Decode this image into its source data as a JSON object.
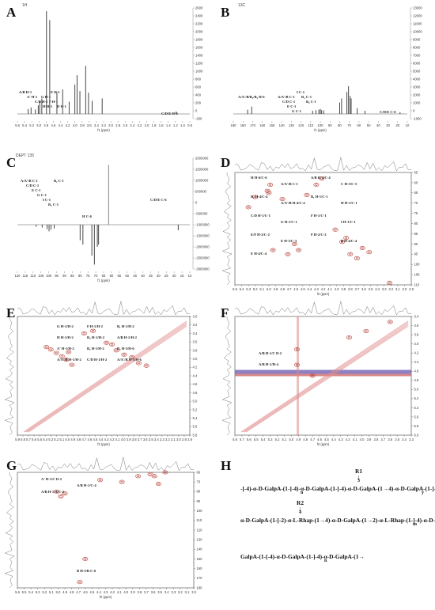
{
  "panels": {
    "A": {
      "letter": "A",
      "tag": "1H",
      "xlabel": "f1 (ppm)",
      "ticks": [
        "5.6",
        "5.4",
        "5.2",
        "5.0",
        "4.8",
        "4.6",
        "4.4",
        "4.2",
        "4.0",
        "3.8",
        "3.6",
        "3.4",
        "3.2",
        "3.0",
        "2.8",
        "2.6",
        "2.4",
        "2.2",
        "2.0",
        "1.8",
        "1.6",
        "1.4",
        "1.2",
        "1.0",
        "0.8"
      ],
      "yticks": [
        "2600",
        "2400",
        "2200",
        "2000",
        "1800",
        "1600",
        "1400",
        "1200",
        "1000",
        "800",
        "600",
        "400",
        "200",
        "0",
        "-200"
      ],
      "labels": [
        "A/B H-1",
        "A' H-1",
        "C/D H-1",
        "H H-1",
        "E H-1",
        "G H-1",
        "F H-1",
        "D H-1",
        "C/D/E H-6"
      ]
    },
    "B": {
      "letter": "B",
      "tag": "13C",
      "xlabel": "f1 (ppm)",
      "ticks": [
        "190",
        "180",
        "170",
        "160",
        "150",
        "140",
        "130",
        "120",
        "110",
        "100",
        "90",
        "80",
        "70",
        "60",
        "50",
        "40",
        "30",
        "20",
        "10"
      ],
      "yticks": [
        "13000",
        "12000",
        "11000",
        "10000",
        "9000",
        "8000",
        "7000",
        "6000",
        "5000",
        "4000",
        "3000",
        "2000",
        "1000",
        "0",
        "-1000"
      ],
      "labels": [
        "A/A'/B/B₁/B₂ H-6",
        "A/A'/B C-1",
        "C/D C-1",
        "E C-1",
        "G C-1",
        "I C-1",
        "R₁ C-1",
        "B₂ C-1",
        "C/D/E C-6"
      ]
    },
    "C": {
      "letter": "C",
      "tag": "DEPT 135",
      "xlabel": "f1 (ppm)",
      "ticks": [
        "120",
        "115",
        "110",
        "105",
        "100",
        "95",
        "90",
        "85",
        "80",
        "75",
        "70",
        "65",
        "60",
        "55",
        "50",
        "45",
        "40",
        "35",
        "30",
        "25",
        "20",
        "15",
        "10"
      ],
      "yticks": [
        "2000000",
        "1500000",
        "1000000",
        "500000",
        "0",
        "-500000",
        "-1000000",
        "-1500000",
        "-2000000",
        "-2500000",
        "-3000000"
      ],
      "labels": [
        "A/A'/B C-1",
        "C/D C-1",
        "E C-1",
        "G C-1",
        "I C-1",
        "R₁ C-1",
        "B₂ C-1",
        "H C-6",
        "C/D/E C-6"
      ]
    },
    "D": {
      "letter": "D",
      "tag": "HSQC",
      "xlabel": "f2 (ppm)",
      "ticks": [
        "5.5",
        "5.4",
        "5.3",
        "5.2",
        "5.1",
        "5.0",
        "4.9",
        "4.8",
        "4.7",
        "4.6",
        "4.5",
        "4.4",
        "4.3",
        "4.2",
        "4.1",
        "4.0",
        "3.9",
        "3.8",
        "3.7",
        "3.6",
        "3.5",
        "3.4",
        "3.3",
        "3.2",
        "3.1",
        "3.0",
        "2.9"
      ],
      "yticks": [
        "55",
        "60",
        "65",
        "70",
        "75",
        "80",
        "85",
        "90",
        "95",
        "100",
        "105",
        "110"
      ],
      "labels": [
        "H H-6/C-6",
        "A/A'/B C-1",
        "A/B H-4/C-4",
        "C H-5/C-5",
        "B₁ H-4/C-4",
        "A/A'/B H-4/C-4",
        "B₁ H-1/C-1",
        "H H-1/C-1",
        "C/D H-1/C-1",
        "G H-1/C-1",
        "F H-1/C-1",
        "I H-1/C-1",
        "E/F H-2/C-2",
        "E H-3/C-3",
        "F H-2/C-2",
        "B H-4/C-4",
        "E H-4/C-4"
      ]
    },
    "E": {
      "letter": "E",
      "tag": "COSY",
      "xlabel": "f2 (ppm)",
      "ticks": [
        "5.9",
        "5.8",
        "5.7",
        "5.6",
        "5.5",
        "5.4",
        "5.3",
        "5.2",
        "5.1",
        "5.0",
        "4.9",
        "4.8",
        "4.7",
        "4.6",
        "4.5",
        "4.4",
        "4.3",
        "4.2",
        "4.1",
        "4.0",
        "3.9",
        "3.8",
        "3.7",
        "3.6",
        "3.5",
        "3.4",
        "3.3",
        "3.2",
        "3.1",
        "3.0",
        "2.9",
        "2.8"
      ],
      "yticks": [
        "3.0",
        "3.2",
        "3.4",
        "3.6",
        "3.8",
        "4.0",
        "4.2",
        "4.4",
        "4.6",
        "4.8",
        "5.0",
        "5.2",
        "5.4",
        "5.6",
        "5.8"
      ],
      "labels": [
        "G H-1/H-2",
        "F H-1/H-2",
        "B₁ H-1/H-2",
        "H H-1/H-2",
        "R₁ H-1/H-2",
        "A/B H-1/H-2",
        "A' H-1/H-2",
        "B₂ H-1/H-2",
        "B₂ H-5/H-6",
        "A/A'/B H-1/H-2",
        "C/D H-1/H-2",
        "A/A'/B H-5/H-6"
      ]
    },
    "F": {
      "letter": "F",
      "tag": "NOESY",
      "xlabel": "f2 (ppm)",
      "ticks": [
        "5.8",
        "5.7",
        "5.6",
        "5.5",
        "5.4",
        "5.3",
        "5.2",
        "5.1",
        "5.0",
        "4.9",
        "4.8",
        "4.7",
        "4.6",
        "4.5",
        "4.4",
        "4.3",
        "4.2",
        "4.1",
        "4.0",
        "3.9",
        "3.8",
        "3.7",
        "3.6",
        "3.5",
        "3.4",
        "3.3"
      ],
      "yticks": [
        "3.4",
        "3.6",
        "3.8",
        "4.0",
        "4.2",
        "4.4",
        "4.6",
        "4.8",
        "5.0",
        "5.2",
        "5.4",
        "5.6",
        "5.8",
        "6.0"
      ],
      "labels": [
        "A/B H-1/C D-2",
        "A/B H-1/H-4"
      ]
    },
    "G": {
      "letter": "G",
      "tag": "HMBC",
      "xlabel": "f2 (ppm)",
      "ticks": [
        "5.6",
        "5.5",
        "5.4",
        "5.3",
        "5.2",
        "5.1",
        "5.0",
        "4.9",
        "4.8",
        "4.7",
        "4.6",
        "4.5",
        "4.4",
        "4.3",
        "4.2",
        "4.1",
        "4.0",
        "3.9",
        "3.8",
        "3.7",
        "3.6",
        "3.5",
        "3.4",
        "3.3",
        "3.2",
        "3.1",
        "3.0"
      ],
      "yticks": [
        "60",
        "70",
        "80",
        "90",
        "100",
        "110",
        "120",
        "130",
        "140",
        "150",
        "160",
        "170",
        "180"
      ],
      "labels": [
        "A' H-1/C D-2",
        "A/B H-1/C-4",
        "A/B H-1/A C-4",
        "B H-5/B C-6"
      ]
    }
  },
  "structure": {
    "letter": "H",
    "row1": "-[-4)-α-D-GalpA-(1-]-4)-α-D-GalpA-(1-[-4)-α-D-GalpA-(1→4)-α-D-GalpA-(1-]-4)-",
    "row1_sub_n": "n",
    "row1_sub_y": "y",
    "r1": "R1",
    "r1_pos": "3",
    "r2": "R2",
    "r2_pos": "4",
    "row2": "α-D-GalpA-(1-[-2)-α-L-Rhap-(1→4)-α-D-GalpA-(1→2)-α-L-Rhap-(1-]-4)-α-D-",
    "row2_sub_m": "m",
    "row3": "GalpA-(1-[-4)-α-D-GalpA-(1-]-4)-α-D-GalpA-(1→",
    "row3_sub_n": "n"
  },
  "chart_data": [
    {
      "type": "line",
      "panel": "A",
      "title": "",
      "xlabel": "f1 (ppm)",
      "ylabel": "",
      "xlim": [
        5.6,
        0.8
      ],
      "ylim": [
        -200,
        2600
      ],
      "x": [
        5.3,
        5.22,
        5.1,
        5.02,
        4.98,
        4.92,
        4.79,
        4.7,
        4.5,
        4.34,
        4.16,
        4.0,
        3.94,
        3.86,
        3.7,
        3.62,
        3.52,
        3.24,
        1.18
      ],
      "y": [
        120,
        160,
        110,
        210,
        310,
        380,
        2520,
        2300,
        520,
        600,
        300,
        720,
        950,
        560,
        1180,
        520,
        320,
        380,
        60
      ]
    },
    {
      "type": "line",
      "panel": "B",
      "title": "",
      "xlabel": "f1 (ppm)",
      "ylabel": "",
      "xlim": [
        190,
        10
      ],
      "ylim": [
        -1000,
        13000
      ],
      "x": [
        175.2,
        171.0,
        108.0,
        104.5,
        101.5,
        100.0,
        98.6,
        96.5,
        80.0,
        78.0,
        72.5,
        70.8,
        69.2,
        68.1,
        61.8,
        53.8,
        17.5
      ],
      "y": [
        520,
        900,
        380,
        460,
        520,
        620,
        480,
        420,
        1400,
        1900,
        2700,
        3400,
        2200,
        1900,
        700,
        400,
        220
      ]
    },
    {
      "type": "line",
      "panel": "C",
      "title": "",
      "xlabel": "f1 (ppm)",
      "ylabel": "",
      "xlim": [
        120,
        10
      ],
      "ylim": [
        -3000000,
        2000000
      ],
      "x": [
        108.0,
        104.2,
        101.0,
        99.8,
        98.6,
        96.5,
        80.0,
        78.2,
        72.5,
        70.9,
        69.0,
        68.2,
        61.8,
        17.4
      ],
      "y": [
        90000,
        130000,
        200000,
        300000,
        220000,
        170000,
        700000,
        900000,
        1400000,
        1800000,
        1000000,
        900000,
        -2700000,
        250000
      ]
    },
    {
      "type": "scatter",
      "panel": "D",
      "title": "",
      "xlabel": "f2 (ppm)",
      "ylabel": "",
      "xlim": [
        5.5,
        2.9
      ],
      "ylim": [
        110,
        55
      ],
      "x": [
        3.22,
        4.94,
        4.72,
        4.62,
        4.56,
        5.3,
        5.2,
        5.02,
        5.0,
        4.98,
        4.8,
        4.44,
        4.3,
        4.22,
        3.92,
        3.7,
        3.62,
        3.86,
        4.02,
        3.8,
        3.52
      ],
      "y": [
        56,
        72,
        70,
        75,
        72,
        93,
        98,
        101,
        100,
        104,
        97,
        99,
        104,
        107,
        76,
        68,
        73,
        78,
        82,
        70,
        71
      ]
    },
    {
      "type": "scatter",
      "panel": "E",
      "title": "",
      "xlabel": "f2 (ppm)",
      "ylabel": "",
      "xlim": [
        5.9,
        2.8
      ],
      "ylim": [
        3.0,
        5.8
      ],
      "x": [
        5.38,
        5.3,
        5.2,
        5.1,
        5.02,
        4.98,
        4.92,
        4.7,
        4.54,
        4.3,
        4.2,
        4.12,
        3.98,
        3.84,
        3.72,
        3.58
      ],
      "y": [
        3.72,
        3.78,
        3.86,
        3.94,
        4.02,
        3.84,
        4.14,
        3.4,
        3.34,
        3.62,
        3.66,
        3.8,
        3.9,
        3.96,
        4.1,
        4.16
      ]
    },
    {
      "type": "scatter",
      "panel": "F",
      "title": "",
      "xlabel": "f2 (ppm)",
      "ylabel": "",
      "xlim": [
        5.8,
        3.3
      ],
      "ylim": [
        3.4,
        6.0
      ],
      "x": [
        4.92,
        4.92,
        4.7,
        4.18,
        3.94,
        3.6
      ],
      "y": [
        4.12,
        4.46,
        4.7,
        3.86,
        3.72,
        3.52
      ]
    },
    {
      "type": "scatter",
      "panel": "G",
      "title": "",
      "xlabel": "f2 (ppm)",
      "ylabel": "",
      "xlim": [
        5.6,
        3.0
      ],
      "ylim": [
        60,
        180
      ],
      "x": [
        5.02,
        4.96,
        4.9,
        4.68,
        4.38,
        4.06,
        3.82,
        3.64,
        3.58,
        3.52,
        3.42,
        4.6
      ],
      "y": [
        80,
        85,
        82,
        174,
        68,
        70,
        64,
        62,
        64,
        72,
        60,
        150
      ]
    }
  ]
}
